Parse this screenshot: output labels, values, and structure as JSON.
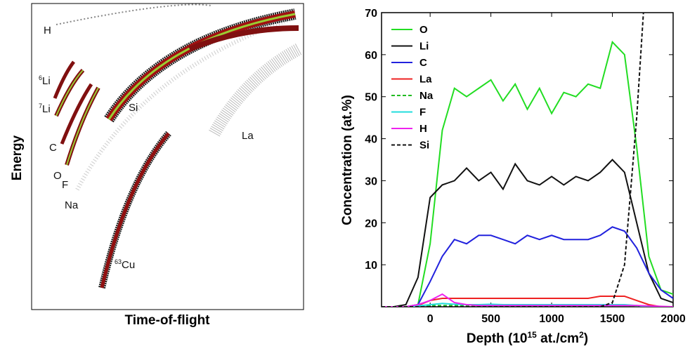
{
  "left_panel": {
    "labels": [
      {
        "text": "H"
      },
      {
        "sup": "6",
        "text": "Li"
      },
      {
        "sup": "7",
        "text": "Li"
      },
      {
        "text": "C"
      },
      {
        "text": "O"
      },
      {
        "text": "F"
      },
      {
        "text": "Na"
      },
      {
        "text": "Si"
      },
      {
        "text": "La"
      },
      {
        "sup": "63",
        "text": "Cu"
      }
    ],
    "x_label": "Time-of-flight",
    "y_label": "Energy"
  },
  "chart_data": {
    "type": "line",
    "x_label": {
      "before": "Depth (10",
      "sup1": "15",
      "middle": " at./cm",
      "sup2": "2",
      "after": ")"
    },
    "y_label": "Concentration (at.%)",
    "x": [
      -400,
      -300,
      -200,
      -100,
      0,
      100,
      200,
      300,
      400,
      500,
      600,
      700,
      800,
      900,
      1000,
      1100,
      1200,
      1300,
      1400,
      1500,
      1600,
      1700,
      1800,
      1900,
      2000
    ],
    "xlim": [
      -400,
      2000
    ],
    "xticks": [
      0,
      500,
      1000,
      1500,
      2000
    ],
    "ylim": [
      0,
      70
    ],
    "yticks": [
      10,
      20,
      30,
      40,
      50,
      60,
      70
    ],
    "legend": "upper left",
    "series": [
      {
        "name": "O",
        "color": "#22dd22",
        "dash": false,
        "values": [
          0,
          0,
          0,
          0.5,
          15,
          42,
          52,
          50,
          52,
          54,
          49,
          53,
          47,
          52,
          46,
          51,
          50,
          53,
          52,
          63,
          60,
          38,
          12,
          4,
          3
        ]
      },
      {
        "name": "Li",
        "color": "#111111",
        "dash": false,
        "values": [
          0,
          0,
          0.5,
          7,
          26,
          29,
          30,
          33,
          30,
          32,
          28,
          34,
          30,
          29,
          31,
          29,
          31,
          30,
          32,
          35,
          32,
          20,
          8,
          2,
          1
        ]
      },
      {
        "name": "C",
        "color": "#2222dd",
        "dash": false,
        "values": [
          0,
          0,
          0,
          0.5,
          6,
          12,
          16,
          15,
          17,
          17,
          16,
          15,
          17,
          16,
          17,
          16,
          16,
          16,
          17,
          19,
          18,
          14,
          8,
          4,
          2
        ]
      },
      {
        "name": "La",
        "color": "#ee2222",
        "dash": false,
        "values": [
          0,
          0,
          0,
          0.3,
          1.5,
          2,
          2,
          2,
          2,
          2,
          2,
          2,
          2,
          2,
          2,
          2,
          2,
          2,
          2.5,
          2.5,
          2.5,
          1.5,
          0.5,
          0,
          0
        ]
      },
      {
        "name": "Na",
        "color": "#22bb22",
        "dash": true,
        "values": [
          0,
          0,
          0,
          0.2,
          0.3,
          0.3,
          0.3,
          0.3,
          0.3,
          0.3,
          0.3,
          0.3,
          0.3,
          0.3,
          0.3,
          0.3,
          0.3,
          0.3,
          0.3,
          0.3,
          0.3,
          0.2,
          0,
          0,
          0
        ]
      },
      {
        "name": "F",
        "color": "#22dddd",
        "dash": false,
        "values": [
          0,
          0,
          0,
          0.2,
          0.5,
          0.8,
          0.6,
          0.5,
          0.5,
          0.6,
          0.5,
          0.5,
          0.5,
          0.5,
          0.5,
          0.5,
          0.5,
          0.5,
          0.5,
          0.5,
          0.5,
          0.3,
          0,
          0,
          0
        ]
      },
      {
        "name": "H",
        "color": "#ee22ee",
        "dash": false,
        "values": [
          0,
          0,
          0,
          0.5,
          1.5,
          3,
          1,
          0.5,
          0.3,
          0.3,
          0.3,
          0.3,
          0.3,
          0.3,
          0.3,
          0.3,
          0.3,
          0.3,
          0.3,
          0.3,
          0.3,
          0.3,
          0.2,
          0.1,
          0
        ]
      },
      {
        "name": "Si",
        "color": "#111111",
        "dash": true,
        "values": [
          0,
          0,
          0,
          0,
          0,
          0,
          0,
          0,
          0,
          0,
          0,
          0,
          0,
          0,
          0,
          0,
          0,
          0,
          0,
          1,
          10,
          45,
          90,
          null,
          null
        ]
      }
    ]
  }
}
